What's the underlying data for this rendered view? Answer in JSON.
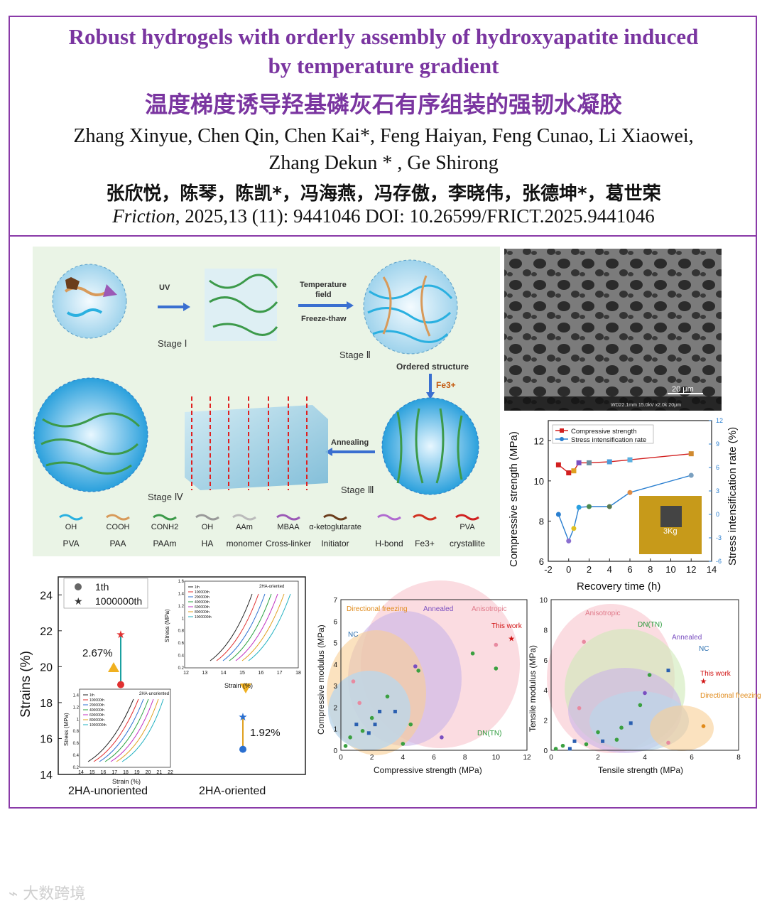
{
  "title_en_line1": "Robust hydrogels with orderly assembly of hydroxyapatite induced",
  "title_en_line2": "by temperature gradient",
  "title_cn": "温度梯度诱导羟基磷灰石有序组装的强韧水凝胶",
  "authors_en_line1": "Zhang Xinyue, Chen Qin, Chen Kai*, Feng Haiyan, Feng Cunao, Li Xiaowei,",
  "authors_en_line2": "Zhang Dekun * , Ge Shirong",
  "authors_cn": "张欣悦，陈琴，陈凯*，冯海燕，冯存傲，李晓伟，张德坤*，葛世荣",
  "citation_journal": "Friction",
  "citation_rest": ", 2025,13 (11): 9441046   DOI: 10.26599/FRICT.2025.9441046",
  "schematic": {
    "uv": "UV",
    "temp_field_1": "Temperature",
    "temp_field_2": "field",
    "freeze_thaw": "Freeze-thaw",
    "stage1": "Stage Ⅰ",
    "stage2": "Stage Ⅱ",
    "stage3": "Stage Ⅲ",
    "stage4": "Stage Ⅳ",
    "ordered": "Ordered structure",
    "fe": "Fe3+",
    "annealing": "Annealing",
    "legend": [
      {
        "top": "OH",
        "bottom": "PVA"
      },
      {
        "top": "COOH",
        "bottom": "PAA"
      },
      {
        "top": "CONH2",
        "bottom": "PAAm"
      },
      {
        "top": "OH",
        "bottom": "HA"
      },
      {
        "top": "AAm",
        "bottom": "monomer"
      },
      {
        "top": "MBAA",
        "bottom": "Cross-linker"
      },
      {
        "top": "α-ketoglutarate",
        "bottom": "Initiator"
      },
      {
        "top": "",
        "bottom": "H-bond"
      },
      {
        "top": "",
        "bottom": "Fe3+"
      },
      {
        "top": "PVA",
        "bottom": "crystallite"
      }
    ]
  },
  "sem": {
    "scale": "20 μm",
    "info": "WD22.1mm 15.0kV x2.0k 20μm"
  },
  "chart_data": [
    {
      "type": "line",
      "xlabel": "Recovery time (h)",
      "ylabel": "Compressive strength (MPa)",
      "y2label": "Stress intensification rate (%)",
      "xlim": [
        -2,
        14
      ],
      "ylim": [
        6,
        13
      ],
      "y2lim": [
        -6,
        12
      ],
      "xticks": [
        -2,
        0,
        2,
        4,
        6,
        8,
        10,
        12,
        14
      ],
      "yticks": [
        6,
        8,
        10,
        12
      ],
      "y2ticks": [
        -6,
        -3,
        0,
        3,
        6,
        9,
        12
      ],
      "legend": [
        "Compressive strength",
        "Stress intensification rate"
      ],
      "inset_label": "3Kg",
      "series": [
        {
          "name": "Compressive strength",
          "x": [
            -1,
            0,
            0.5,
            1,
            2,
            4,
            6,
            12
          ],
          "y": [
            10.8,
            10.4,
            10.5,
            10.9,
            10.9,
            10.95,
            11.05,
            11.35
          ]
        },
        {
          "name": "Stress intensification rate",
          "x": [
            -1,
            0,
            0.5,
            1,
            2,
            4,
            6,
            12
          ],
          "y": [
            0,
            -3.4,
            -1.8,
            0.9,
            1.0,
            1.0,
            2.8,
            5.0
          ]
        }
      ]
    },
    {
      "type": "scatter",
      "ylabel": "Strains (%)",
      "categories": [
        "2HA-unoriented",
        "2HA-oriented"
      ],
      "ylim": [
        14,
        25
      ],
      "yticks": [
        14,
        16,
        18,
        20,
        22,
        24
      ],
      "legend": [
        "1th",
        "1000000th"
      ],
      "series": [
        {
          "name": "1th",
          "values": [
            19.0,
            15.4
          ]
        },
        {
          "name": "1000000th",
          "values": [
            21.8,
            17.2
          ]
        }
      ],
      "annotations": [
        "2.67%",
        "1.92%"
      ],
      "inset_top": {
        "title": "2HA-oriented",
        "xlabel": "Strain (%)",
        "ylabel": "Stress (MPa)",
        "xticks": [
          12,
          13,
          14,
          15,
          16,
          17,
          18
        ],
        "yticks": [
          0.2,
          0.4,
          0.6,
          0.8,
          1.0,
          1.2,
          1.4,
          1.6
        ],
        "legend": [
          "1th",
          "100000th",
          "200000th",
          "400000th",
          "600000th",
          "800000th",
          "1000000th"
        ]
      },
      "inset_bottom": {
        "title": "2HA-unoriented",
        "xlabel": "Strain (%)",
        "ylabel": "Stress (MPa)",
        "xticks": [
          14,
          15,
          16,
          17,
          18,
          19,
          20,
          21,
          22
        ],
        "yticks": [
          0.2,
          0.4,
          0.6,
          0.8,
          1.0,
          1.2,
          1.4
        ],
        "legend": [
          "1th",
          "100000th",
          "200000th",
          "400000th",
          "600000th",
          "800000th",
          "1000000th"
        ]
      }
    },
    {
      "type": "scatter",
      "xlabel": "Compressive strength (MPa)",
      "ylabel": "Compressive modulus (MPa)",
      "xlim": [
        0,
        12
      ],
      "ylim": [
        0,
        7
      ],
      "xticks": [
        0,
        2,
        4,
        6,
        8,
        10,
        12
      ],
      "yticks": [
        0,
        1,
        2,
        3,
        4,
        5,
        6,
        7
      ],
      "regions": [
        "Directional freezing",
        "Annealed",
        "Anisotropic",
        "NC",
        "DN(TN)"
      ],
      "highlight": {
        "label": "This work",
        "x": 11.0,
        "y": 5.2
      }
    },
    {
      "type": "scatter",
      "xlabel": "Tensile strength (MPa)",
      "ylabel": "Tensile modulus (MPa)",
      "xlim": [
        0,
        8
      ],
      "ylim": [
        0,
        10
      ],
      "xticks": [
        0,
        2,
        4,
        6,
        8
      ],
      "yticks": [
        0,
        2,
        4,
        6,
        8,
        10
      ],
      "regions": [
        "Anisotropic",
        "DN(TN)",
        "Annealed",
        "NC",
        "Directional freezing"
      ],
      "highlight": {
        "label": "This work",
        "x": 6.5,
        "y": 4.6
      }
    }
  ],
  "watermark": "大数跨境"
}
